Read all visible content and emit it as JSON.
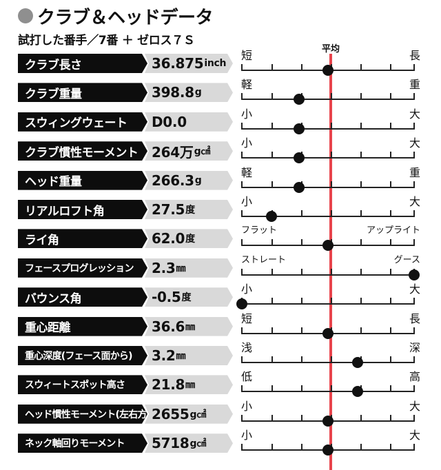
{
  "header": {
    "title": "クラブ＆ヘッドデータ",
    "subtitle": "試打した番手／7番 ＋ ゼロス７Ｓ",
    "average_label": "平均"
  },
  "colors": {
    "label_bg": "#0d0d0d",
    "value_bg": "#d9d9d9",
    "average_line": "#e8444c",
    "title_dot": "#8f8f8f"
  },
  "rows": [
    {
      "label": "クラブ長さ",
      "value": "36.875",
      "unit": "inch",
      "low": "短",
      "high": "長",
      "level": 0.5
    },
    {
      "label": "クラブ重量",
      "value": "398.8",
      "unit": "g",
      "low": "軽",
      "high": "重",
      "level": 0.33
    },
    {
      "label": "スウィングウェート",
      "value": "D0.0",
      "unit": "",
      "low": "小",
      "high": "大",
      "level": 0.33
    },
    {
      "label": "クラブ慣性モーメント",
      "value": "264万",
      "unit": "g㎠",
      "low": "小",
      "high": "大",
      "level": 0.33
    },
    {
      "label": "ヘッド重量",
      "value": "266.3",
      "unit": "g",
      "low": "軽",
      "high": "重",
      "level": 0.33
    },
    {
      "label": "リアルロフト角",
      "value": "27.5",
      "unit": "度",
      "low": "小",
      "high": "大",
      "level": 0.17
    },
    {
      "label": "ライ角",
      "value": "62.0",
      "unit": "度",
      "low": "フラット",
      "high": "アップライト",
      "level": 0.5
    },
    {
      "label": "フェースプログレッション",
      "value": "2.3",
      "unit": "㎜",
      "low": "ストレート",
      "high": "グース",
      "level": 1.0
    },
    {
      "label": "バウンス角",
      "value": "-0.5",
      "unit": "度",
      "low": "小",
      "high": "大",
      "level": 0.0
    },
    {
      "label": "重心距離",
      "value": "36.6",
      "unit": "㎜",
      "low": "短",
      "high": "長",
      "level": 0.5
    },
    {
      "label": "重心深度(フェース面から)",
      "value": "3.2",
      "unit": "㎜",
      "low": "浅",
      "high": "深",
      "level": 0.67
    },
    {
      "label": "スウィートスポット高さ",
      "value": "21.8",
      "unit": "㎜",
      "low": "低",
      "high": "高",
      "level": 0.67
    },
    {
      "label": "ヘッド慣性モーメント(左右方向)",
      "value": "2655",
      "unit": "g㎠",
      "low": "小",
      "high": "大",
      "level": 0.5
    },
    {
      "label": "ネック軸回りモーメント",
      "value": "5718",
      "unit": "g㎠",
      "low": "小",
      "high": "大",
      "level": 0.5
    }
  ]
}
